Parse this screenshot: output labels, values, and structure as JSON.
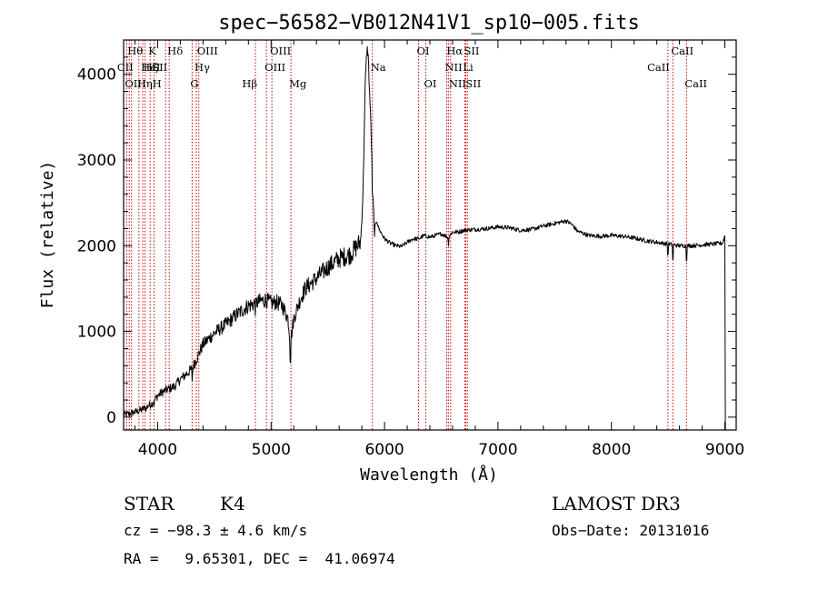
{
  "chart_data": {
    "type": "line",
    "title": "spec−56582−VB012N41V1_sp10−005.fits",
    "xlabel": "Wavelength (Å)",
    "ylabel": "Flux (relative)",
    "xlim": [
      3700,
      9100
    ],
    "ylim": [
      -150,
      4400
    ],
    "xticks": [
      4000,
      5000,
      6000,
      7000,
      8000,
      9000
    ],
    "yticks": [
      0,
      1000,
      2000,
      3000,
      4000
    ],
    "x_minor_step": 200,
    "y_minor_step": 200,
    "series": [
      {
        "name": "flux",
        "color": "#000000",
        "knots": [
          [
            3700,
            30
          ],
          [
            3750,
            40
          ],
          [
            3800,
            60
          ],
          [
            3850,
            80
          ],
          [
            3900,
            120
          ],
          [
            3950,
            160
          ],
          [
            4000,
            250
          ],
          [
            4050,
            300
          ],
          [
            4100,
            330
          ],
          [
            4150,
            360
          ],
          [
            4200,
            440
          ],
          [
            4250,
            500
          ],
          [
            4300,
            560
          ],
          [
            4350,
            700
          ],
          [
            4400,
            850
          ],
          [
            4500,
            980
          ],
          [
            4600,
            1080
          ],
          [
            4700,
            1200
          ],
          [
            4800,
            1300
          ],
          [
            4900,
            1350
          ],
          [
            4950,
            1370
          ],
          [
            5000,
            1330
          ],
          [
            5050,
            1340
          ],
          [
            5100,
            1300
          ],
          [
            5150,
            1150
          ],
          [
            5170,
            860
          ],
          [
            5200,
            1150
          ],
          [
            5250,
            1350
          ],
          [
            5300,
            1500
          ],
          [
            5400,
            1620
          ],
          [
            5500,
            1750
          ],
          [
            5600,
            1850
          ],
          [
            5700,
            1900
          ],
          [
            5750,
            1980
          ],
          [
            5790,
            2050
          ],
          [
            5810,
            2600
          ],
          [
            5830,
            3900
          ],
          [
            5845,
            4300
          ],
          [
            5855,
            4250
          ],
          [
            5865,
            3900
          ],
          [
            5880,
            3400
          ],
          [
            5895,
            2700
          ],
          [
            5910,
            2150
          ],
          [
            5930,
            2300
          ],
          [
            5950,
            2200
          ],
          [
            6000,
            2080
          ],
          [
            6050,
            2030
          ],
          [
            6100,
            2000
          ],
          [
            6150,
            1990
          ],
          [
            6200,
            2040
          ],
          [
            6250,
            2080
          ],
          [
            6300,
            2080
          ],
          [
            6350,
            2120
          ],
          [
            6400,
            2100
          ],
          [
            6450,
            2120
          ],
          [
            6500,
            2140
          ],
          [
            6560,
            2100
          ],
          [
            6600,
            2160
          ],
          [
            6650,
            2160
          ],
          [
            6700,
            2180
          ],
          [
            6800,
            2190
          ],
          [
            6900,
            2200
          ],
          [
            7000,
            2220
          ],
          [
            7100,
            2210
          ],
          [
            7200,
            2180
          ],
          [
            7300,
            2190
          ],
          [
            7400,
            2230
          ],
          [
            7500,
            2260
          ],
          [
            7600,
            2290
          ],
          [
            7650,
            2250
          ],
          [
            7700,
            2170
          ],
          [
            7800,
            2120
          ],
          [
            7900,
            2110
          ],
          [
            8000,
            2120
          ],
          [
            8100,
            2110
          ],
          [
            8200,
            2090
          ],
          [
            8300,
            2060
          ],
          [
            8400,
            2040
          ],
          [
            8500,
            2020
          ],
          [
            8600,
            2000
          ],
          [
            8700,
            2000
          ],
          [
            8800,
            2010
          ],
          [
            8900,
            2020
          ],
          [
            8980,
            2030
          ],
          [
            9000,
            2120
          ]
        ],
        "dips": [
          [
            3900,
            40
          ],
          [
            3970,
            60
          ],
          [
            4305,
            150
          ],
          [
            4862,
            90
          ],
          [
            5170,
            280
          ],
          [
            5893,
            250
          ],
          [
            6563,
            100
          ],
          [
            8498,
            190
          ],
          [
            8542,
            260
          ],
          [
            8662,
            230
          ]
        ]
      }
    ],
    "reference_lines": [
      {
        "wavelength": 3727,
        "label": "OII",
        "tier": 2,
        "align": "start"
      },
      {
        "wavelength": 3750,
        "label": "Hθ",
        "tier": 0,
        "align": "start"
      },
      {
        "wavelength": 3770,
        "label": "CII",
        "tier": 1,
        "align": "end"
      },
      {
        "wavelength": 3835,
        "label": "Hη",
        "tier": 2,
        "align": "start"
      },
      {
        "wavelength": 3869,
        "label": "HeI",
        "tier": 1,
        "align": "start"
      },
      {
        "wavelength": 3889,
        "label": "Hζ",
        "tier": 1,
        "align": "start"
      },
      {
        "wavelength": 3934,
        "label": "K",
        "tier": 0,
        "align": "start"
      },
      {
        "wavelength": 3969,
        "label": "H",
        "tier": 2,
        "align": "start"
      },
      {
        "wavelength": 4070,
        "label": "SII",
        "tier": 1,
        "align": "end"
      },
      {
        "wavelength": 4102,
        "label": "Hδ",
        "tier": 0,
        "align": "start"
      },
      {
        "wavelength": 4304,
        "label": "G",
        "tier": 2,
        "align": "start"
      },
      {
        "wavelength": 4341,
        "label": "Hγ",
        "tier": 1,
        "align": "start"
      },
      {
        "wavelength": 4363,
        "label": "OIII",
        "tier": 0,
        "align": "start"
      },
      {
        "wavelength": 4862,
        "label": "Hβ",
        "tier": 2,
        "align": "end"
      },
      {
        "wavelength": 4959,
        "label": "OIII",
        "tier": 1,
        "align": "start"
      },
      {
        "wavelength": 5007,
        "label": "OIII",
        "tier": 0,
        "align": "start"
      },
      {
        "wavelength": 5175,
        "label": "Mg",
        "tier": 2,
        "align": "start"
      },
      {
        "wavelength": 5893,
        "label": "Na",
        "tier": 1,
        "align": "start"
      },
      {
        "wavelength": 6300,
        "label": "OI",
        "tier": 0,
        "align": "start"
      },
      {
        "wavelength": 6364,
        "label": "OI",
        "tier": 2,
        "align": "start"
      },
      {
        "wavelength": 6548,
        "label": "NII",
        "tier": 1,
        "align": "start"
      },
      {
        "wavelength": 6563,
        "label": "Hα",
        "tier": 0,
        "align": "start"
      },
      {
        "wavelength": 6583,
        "label": "NII",
        "tier": 2,
        "align": "start"
      },
      {
        "wavelength": 6707,
        "label": "Li",
        "tier": 1,
        "align": "start"
      },
      {
        "wavelength": 6716,
        "label": "SII",
        "tier": 0,
        "align": "start"
      },
      {
        "wavelength": 6731,
        "label": "SII",
        "tier": 2,
        "align": "start"
      },
      {
        "wavelength": 8498,
        "label": "CaII",
        "tier": 1,
        "align": "end"
      },
      {
        "wavelength": 8542,
        "label": "CaII",
        "tier": 0,
        "align": "start"
      },
      {
        "wavelength": 8662,
        "label": "CaII",
        "tier": 2,
        "align": "start"
      }
    ],
    "reference_line_color": "#cc0000"
  },
  "footer": {
    "object_class": "STAR",
    "subclass": "K4",
    "survey": "LAMOST DR3",
    "redshift_text": "cz = −98.3 ± 4.6 km/s",
    "obs_date_text": "Obs−Date: 20131016",
    "coords_text": "RA =   9.65301, DEC =  41.06974"
  }
}
